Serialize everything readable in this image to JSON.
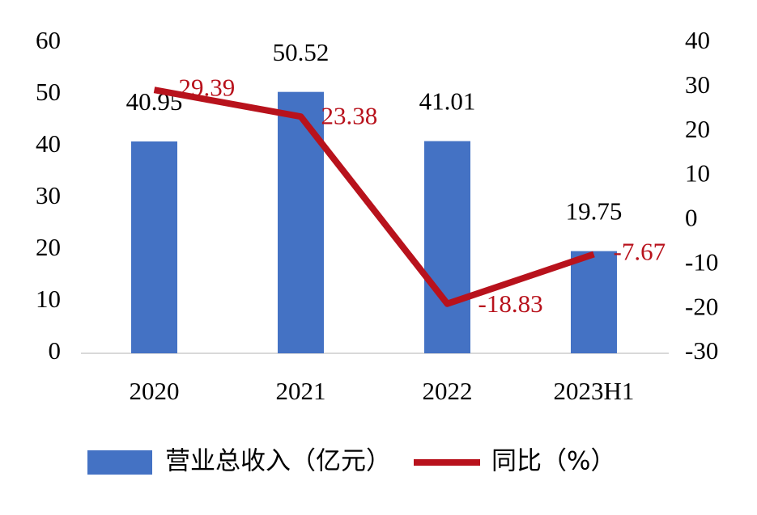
{
  "chart_data": {
    "type": "bar",
    "categories": [
      "2020",
      "2021",
      "2022",
      "2023H1"
    ],
    "series": [
      {
        "name": "营业总收入（亿元）",
        "type": "bar",
        "color": "#4472c4",
        "values": [
          40.95,
          50.52,
          41.01,
          19.75
        ]
      },
      {
        "name": "同比（%）",
        "type": "line",
        "color": "#b8121c",
        "axis": "y2",
        "values": [
          29.39,
          23.38,
          -18.83,
          -7.67
        ]
      }
    ],
    "ylim": [
      0,
      60
    ],
    "yticks": [
      0,
      10,
      20,
      30,
      40,
      50,
      60
    ],
    "y2lim": [
      -30,
      40
    ],
    "y2ticks": [
      -30,
      -20,
      -10,
      0,
      10,
      20,
      30,
      40
    ],
    "grid": false,
    "legend": "bottom"
  }
}
